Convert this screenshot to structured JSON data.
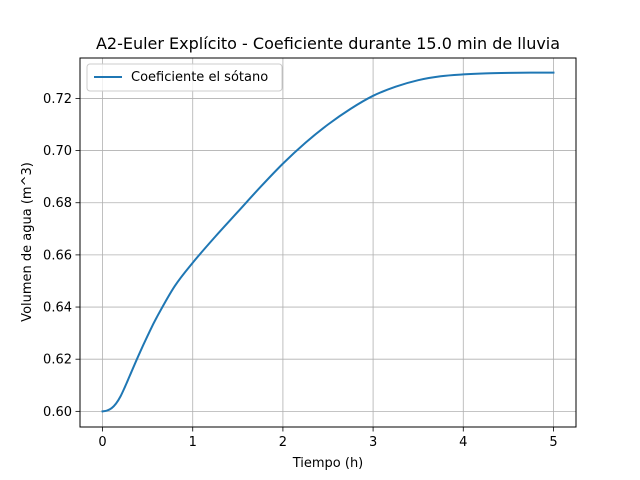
{
  "chart_data": {
    "type": "line",
    "title": "A2-Euler Explícito - Coeficiente durante 15.0 min de lluvia",
    "xlabel": "Tiempo (h)",
    "ylabel": "Volumen de agua (m^3)",
    "xlim": [
      -0.25,
      5.25
    ],
    "ylim": [
      0.594,
      0.7355
    ],
    "xticks": [
      0,
      1,
      2,
      3,
      4,
      5
    ],
    "xtick_labels": [
      "0",
      "1",
      "2",
      "3",
      "4",
      "5"
    ],
    "yticks": [
      0.6,
      0.62,
      0.64,
      0.66,
      0.68,
      0.7,
      0.72
    ],
    "ytick_labels": [
      "0.60",
      "0.62",
      "0.64",
      "0.66",
      "0.68",
      "0.70",
      "0.72"
    ],
    "grid": true,
    "legend_position": "top-left",
    "series": [
      {
        "name": "Coeficiente el sótano",
        "color": "#1f77b4",
        "x": [
          0,
          0.05,
          0.1,
          0.15,
          0.2,
          0.25,
          0.3,
          0.4,
          0.5,
          0.6,
          0.8,
          1.0,
          1.25,
          1.5,
          1.75,
          2.0,
          2.25,
          2.5,
          2.75,
          3.0,
          3.25,
          3.5,
          3.75,
          4.0,
          4.25,
          4.5,
          4.75,
          5.0
        ],
        "y": [
          0.6,
          0.6003,
          0.6012,
          0.603,
          0.6058,
          0.6095,
          0.6135,
          0.6215,
          0.629,
          0.636,
          0.648,
          0.657,
          0.667,
          0.6765,
          0.686,
          0.695,
          0.703,
          0.71,
          0.716,
          0.721,
          0.7245,
          0.727,
          0.7285,
          0.7292,
          0.7296,
          0.7298,
          0.7299,
          0.7299
        ]
      }
    ]
  }
}
